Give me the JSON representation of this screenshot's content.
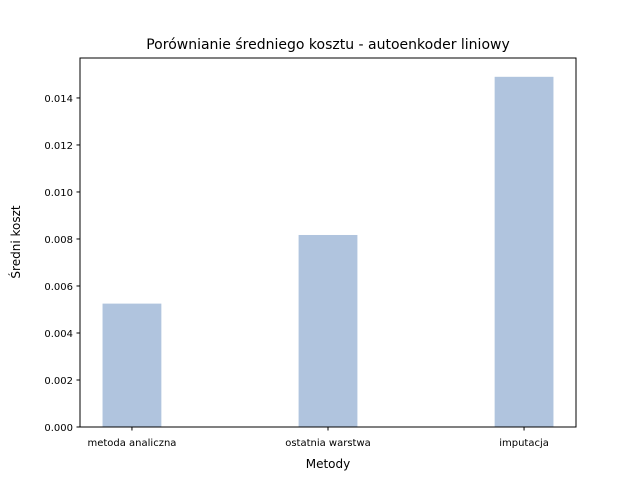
{
  "chart_data": {
    "type": "bar",
    "title": "Porównianie średniego kosztu - autoenkoder liniowy",
    "xlabel": "Metody",
    "ylabel": "Średni koszt",
    "categories": [
      "metoda analiczna",
      "ostatnia warstwa",
      "imputacja"
    ],
    "values": [
      0.00525,
      0.00817,
      0.0149
    ],
    "ylim": [
      0,
      0.0157
    ],
    "yticks": [
      "0.000",
      "0.002",
      "0.004",
      "0.006",
      "0.008",
      "0.010",
      "0.012",
      "0.014"
    ],
    "ytick_values": [
      0,
      0.002,
      0.004,
      0.006,
      0.008,
      0.01,
      0.012,
      0.014
    ],
    "bar_color": "#b0c4de",
    "grid": false,
    "legend": false
  }
}
